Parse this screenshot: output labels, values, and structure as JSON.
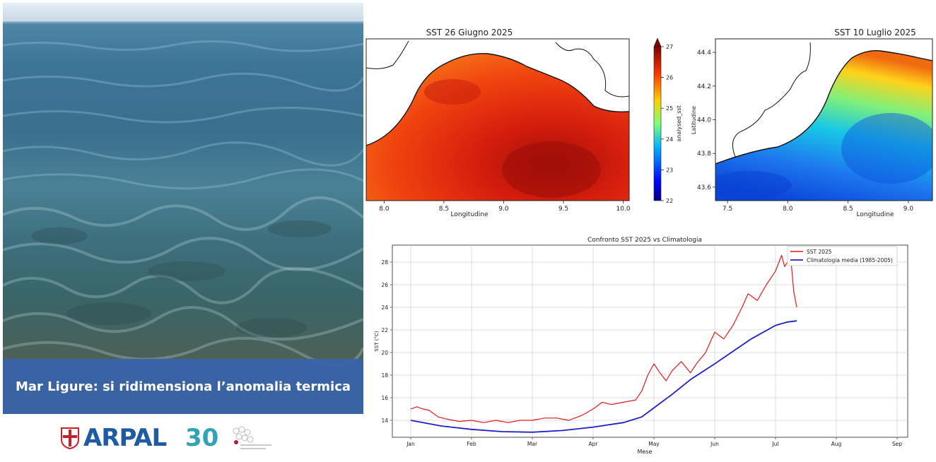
{
  "photo": {
    "caption": "Mar Ligure: si ridimensiona l’anomalia termica",
    "logo_text": "ARPAL",
    "logo_number": "30"
  },
  "chart_data": [
    {
      "type": "heatmap",
      "title": "SST 26 Giugno 2025",
      "xlabel": "Longitudine",
      "ylabel": "",
      "xlim": [
        7.85,
        10.05
      ],
      "ylim": [
        43.52,
        44.45
      ],
      "xticks": [
        "8.0",
        "8.5",
        "9.0",
        "9.5",
        "10.0"
      ],
      "colorbar": {
        "label": "analysed_sst",
        "min": 22,
        "max": 27,
        "ticks": [
          "22",
          "23",
          "24",
          "25",
          "26",
          "27"
        ]
      }
    },
    {
      "type": "heatmap",
      "title": "SST 10 Luglio 2025",
      "xlabel": "Longitudine",
      "ylabel": "Latitudine",
      "xlim": [
        7.4,
        9.2
      ],
      "ylim": [
        43.52,
        44.48
      ],
      "xticks": [
        "7.5",
        "8.0",
        "8.5",
        "9.0"
      ],
      "yticks": [
        "43.6",
        "43.8",
        "44.0",
        "44.2",
        "44.4"
      ]
    },
    {
      "type": "line",
      "title": "Confronto SST 2025 vs Climatologia",
      "xlabel": "Mese",
      "ylabel": "SST (°C)",
      "xlim": [
        0,
        8
      ],
      "ylim": [
        12.5,
        29.5
      ],
      "xticks": [
        "Jan",
        "Feb",
        "Mar",
        "Apr",
        "May",
        "Jun",
        "Jul",
        "Aug",
        "Sep"
      ],
      "yticks": [
        "14",
        "16",
        "18",
        "20",
        "22",
        "24",
        "26",
        "28"
      ],
      "grid": true,
      "legend": "top-right",
      "series": [
        {
          "name": "SST 2025",
          "color": "#e0191d",
          "x": [
            0,
            0.1,
            0.2,
            0.3,
            0.45,
            0.6,
            0.8,
            1.0,
            1.2,
            1.4,
            1.6,
            1.8,
            2.0,
            2.2,
            2.4,
            2.6,
            2.8,
            3.0,
            3.15,
            3.3,
            3.5,
            3.7,
            3.8,
            3.9,
            4.0,
            4.1,
            4.2,
            4.3,
            4.45,
            4.6,
            4.7,
            4.85,
            5.0,
            5.15,
            5.3,
            5.45,
            5.55,
            5.7,
            5.85,
            6.0,
            6.1,
            6.15,
            6.25,
            6.3,
            6.35
          ],
          "values": [
            15.0,
            15.2,
            15.0,
            14.9,
            14.3,
            14.1,
            13.9,
            14.0,
            13.8,
            14.0,
            13.8,
            14.0,
            14.0,
            14.2,
            14.2,
            14.0,
            14.4,
            15.0,
            15.6,
            15.4,
            15.6,
            15.8,
            16.6,
            18.0,
            19.0,
            18.2,
            17.5,
            18.4,
            19.2,
            18.2,
            19.0,
            20.0,
            21.8,
            21.2,
            22.4,
            24.0,
            25.2,
            24.6,
            26.0,
            27.2,
            28.6,
            27.6,
            28.4,
            25.4,
            24.0
          ]
        },
        {
          "name": "Climatologia media (1985-2005)",
          "color": "#1f1fc9",
          "x": [
            0,
            0.5,
            1.0,
            1.5,
            2.0,
            2.5,
            3.0,
            3.5,
            3.8,
            4.0,
            4.3,
            4.6,
            5.0,
            5.3,
            5.6,
            6.0,
            6.2,
            6.35
          ],
          "values": [
            14.0,
            13.5,
            13.2,
            13.0,
            12.95,
            13.1,
            13.4,
            13.8,
            14.3,
            15.1,
            16.3,
            17.6,
            19.0,
            20.1,
            21.2,
            22.4,
            22.7,
            22.8
          ]
        }
      ]
    }
  ]
}
